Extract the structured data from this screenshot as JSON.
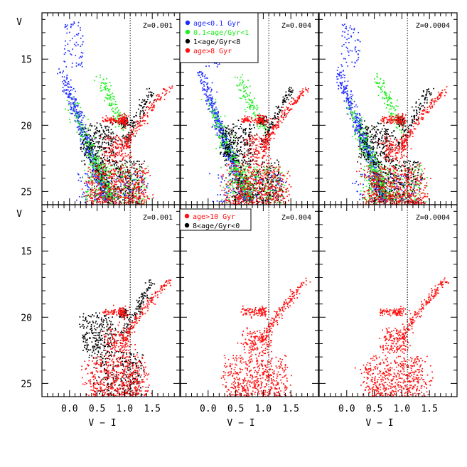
{
  "figure": {
    "xlabel": "V − I",
    "ylabel": "V"
  },
  "colors": {
    "young": "#1e2bff",
    "inter": "#22ee22",
    "old1": "#000000",
    "old2": "#ff1010"
  },
  "chart_data": {
    "type": "scatter",
    "layout": "2x3 panel grid of color-magnitude diagrams",
    "xlim": [
      -0.5,
      2.0
    ],
    "ylim": [
      26.0,
      11.5
    ],
    "xticks": [
      0.0,
      0.5,
      1.0,
      1.5
    ],
    "xtick_labels": [
      "0.0",
      "0.5",
      "1.0",
      "1.5"
    ],
    "yticks": [
      15,
      20,
      25
    ],
    "ytick_labels": [
      "15",
      "20",
      "25"
    ],
    "xlabel": "V − I",
    "ylabel": "V",
    "reference_line_x": 1.1,
    "panels": [
      {
        "row": 0,
        "col": 0,
        "label": "Z=0.001",
        "series": [
          "young",
          "inter",
          "old1",
          "old2"
        ]
      },
      {
        "row": 0,
        "col": 1,
        "label": "Z=0.004",
        "series": [
          "young",
          "inter",
          "old1",
          "old2"
        ]
      },
      {
        "row": 0,
        "col": 2,
        "label": "Z=0.0004",
        "series": [
          "young",
          "inter",
          "old1",
          "old2"
        ]
      },
      {
        "row": 1,
        "col": 0,
        "label": "Z=0.001",
        "series": [
          "old1",
          "old2"
        ]
      },
      {
        "row": 1,
        "col": 1,
        "label": "Z=0.004",
        "series": [
          "old2"
        ]
      },
      {
        "row": 1,
        "col": 2,
        "label": "Z=0.0004",
        "series": [
          "old2"
        ]
      }
    ],
    "legend_top": [
      {
        "label": "age<0.1 Gyr",
        "series": "young"
      },
      {
        "label": "0.1<age/Gyr<1",
        "series": "inter"
      },
      {
        "label": "1<age/Gyr<8",
        "series": "old1"
      },
      {
        "label": "age>8 Gyr",
        "series": "old2"
      }
    ],
    "legend_bottom": [
      {
        "label": "age>10 Gyr",
        "series": "old2"
      },
      {
        "label": "8<age/Gyr<0",
        "series": "old1"
      }
    ]
  }
}
